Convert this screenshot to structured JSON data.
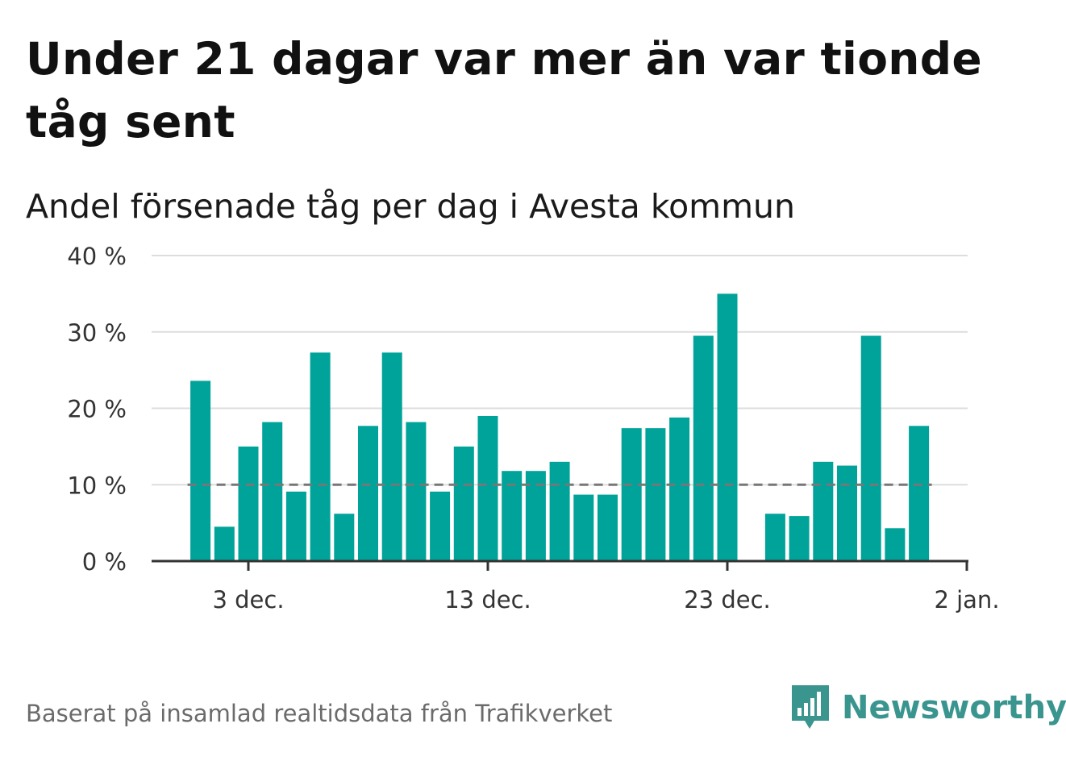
{
  "title": "Under 21 dagar var mer än var tionde tåg sent",
  "subtitle": "Andel försenade tåg per dag i Avesta kommun",
  "footer": "Baserat på insamlad realtidsdata från Trafikverket",
  "logo": {
    "text": "Newsworthy",
    "icon": "bar-chart-speech-bubble-icon"
  },
  "colors": {
    "bar": "#00a39a",
    "reference_line": "#777777",
    "grid": "#dddddd",
    "brand": "#3a958f"
  },
  "chart_data": {
    "type": "bar",
    "x_ticks": [
      {
        "date": "2023-12-03",
        "label": "3 dec."
      },
      {
        "date": "2023-12-13",
        "label": "13 dec."
      },
      {
        "date": "2023-12-23",
        "label": "23 dec."
      },
      {
        "date": "2024-01-02",
        "label": "2 jan."
      }
    ],
    "y_ticks": [
      {
        "value": 0,
        "label": "0 %"
      },
      {
        "value": 10,
        "label": "10 %"
      },
      {
        "value": 20,
        "label": "20 %"
      },
      {
        "value": 30,
        "label": "30 %"
      },
      {
        "value": 40,
        "label": "40 %"
      }
    ],
    "ylim": [
      0,
      40
    ],
    "reference_line": {
      "value": 10,
      "style": "dashed"
    },
    "grid": true,
    "series": [
      {
        "data": [
          {
            "date": "2023-12-01",
            "value": 23.6
          },
          {
            "date": "2023-12-02",
            "value": 4.5
          },
          {
            "date": "2023-12-03",
            "value": 15.0
          },
          {
            "date": "2023-12-04",
            "value": 18.2
          },
          {
            "date": "2023-12-05",
            "value": 9.1
          },
          {
            "date": "2023-12-06",
            "value": 27.3
          },
          {
            "date": "2023-12-07",
            "value": 6.2
          },
          {
            "date": "2023-12-08",
            "value": 17.7
          },
          {
            "date": "2023-12-09",
            "value": 27.3
          },
          {
            "date": "2023-12-10",
            "value": 18.2
          },
          {
            "date": "2023-12-11",
            "value": 9.1
          },
          {
            "date": "2023-12-12",
            "value": 15.0
          },
          {
            "date": "2023-12-13",
            "value": 19.0
          },
          {
            "date": "2023-12-14",
            "value": 11.8
          },
          {
            "date": "2023-12-15",
            "value": 11.8
          },
          {
            "date": "2023-12-16",
            "value": 13.0
          },
          {
            "date": "2023-12-17",
            "value": 8.7
          },
          {
            "date": "2023-12-18",
            "value": 8.7
          },
          {
            "date": "2023-12-19",
            "value": 17.4
          },
          {
            "date": "2023-12-20",
            "value": 17.4
          },
          {
            "date": "2023-12-21",
            "value": 18.8
          },
          {
            "date": "2023-12-22",
            "value": 29.5
          },
          {
            "date": "2023-12-23",
            "value": 35.0
          },
          {
            "date": "2023-12-25",
            "value": 6.2
          },
          {
            "date": "2023-12-26",
            "value": 5.9
          },
          {
            "date": "2023-12-27",
            "value": 13.0
          },
          {
            "date": "2023-12-28",
            "value": 12.5
          },
          {
            "date": "2023-12-29",
            "value": 29.5
          },
          {
            "date": "2023-12-30",
            "value": 4.3
          },
          {
            "date": "2023-12-31",
            "value": 17.7
          }
        ]
      }
    ]
  }
}
